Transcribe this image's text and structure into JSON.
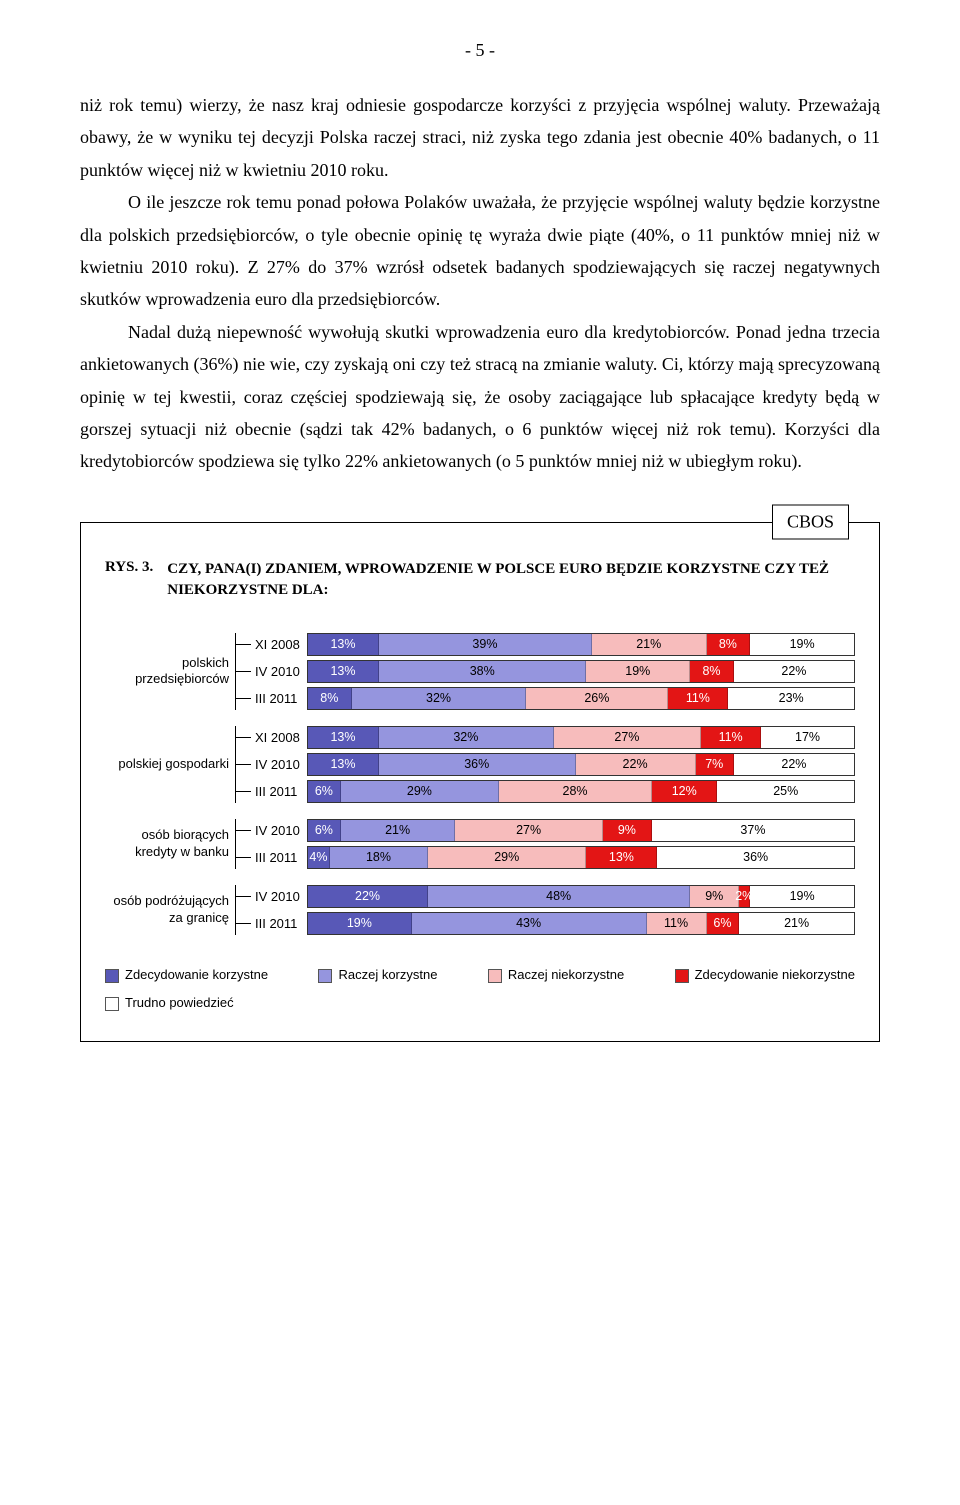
{
  "page_number": "- 5 -",
  "paragraphs": {
    "p1": "niż rok temu) wierzy, że nasz kraj odniesie gospodarcze korzyści z przyjęcia wspólnej waluty. Przeważają obawy, że w wyniku tej decyzji Polska raczej straci, niż zyska tego zdania jest obecnie 40% badanych, o 11 punktów więcej niż w kwietniu 2010 roku.",
    "p2": "O ile jeszcze rok temu ponad połowa Polaków uważała, że przyjęcie wspólnej waluty będzie korzystne dla polskich przedsiębiorców, o tyle obecnie opinię tę wyraża dwie piąte (40%, o 11 punktów mniej niż w kwietniu 2010 roku). Z 27% do 37% wzrósł odsetek badanych spodziewających się raczej negatywnych skutków wprowadzenia euro dla przedsiębiorców.",
    "p3": "Nadal dużą niepewność wywołują skutki wprowadzenia euro dla kredytobiorców. Ponad jedna trzecia ankietowanych (36%) nie wie, czy zyskają oni czy też stracą na zmianie waluty. Ci, którzy mają sprecyzowaną opinię w tej kwestii, coraz częściej spodziewają się, że osoby zaciągające lub spłacające kredyty będą w gorszej sytuacji niż obecnie (sądzi tak 42% badanych, o 6 punktów więcej niż rok temu). Korzyści dla kredytobiorców spodziewa się tylko 22% ankietowanych (o 5 punktów mniej niż w ubiegłym roku)."
  },
  "chart": {
    "badge": "CBOS",
    "rys_label": "RYS. 3.",
    "question": "CZY, PANA(I) ZDANIEM, WPROWADZENIE W POLSCE EURO BĘDZIE KORZYSTNE CZY TEŻ NIEKORZYSTNE DLA:",
    "colors": {
      "zk": "#5858b7",
      "rk": "#9595de",
      "rn": "#f7bcbc",
      "zn": "#e31515",
      "tp": "#ffffff",
      "zk_text": "#ffffff",
      "rk_text": "#000000",
      "rn_text": "#000000",
      "zn_text": "#ffffff",
      "tp_text": "#000000"
    },
    "legend": {
      "zk": "Zdecydowanie korzystne",
      "rk": "Raczej korzystne",
      "rn": "Raczej niekorzystne",
      "zn": "Zdecydowanie niekorzystne",
      "tp": "Trudno powiedzieć"
    },
    "groups": [
      {
        "label": "polskich przedsiębiorców",
        "rows": [
          {
            "wave": "XI 2008",
            "v": [
              13,
              39,
              21,
              8,
              19
            ],
            "l": [
              "13%",
              "39%",
              "21%",
              "8%",
              "19%"
            ]
          },
          {
            "wave": "IV 2010",
            "v": [
              13,
              38,
              19,
              8,
              22
            ],
            "l": [
              "13%",
              "38%",
              "19%",
              "8%",
              "22%"
            ]
          },
          {
            "wave": "III 2011",
            "v": [
              8,
              32,
              26,
              11,
              23
            ],
            "l": [
              "8%",
              "32%",
              "26%",
              "11%",
              "23%"
            ]
          }
        ]
      },
      {
        "label": "polskiej gospodarki",
        "rows": [
          {
            "wave": "XI 2008",
            "v": [
              13,
              32,
              27,
              11,
              17
            ],
            "l": [
              "13%",
              "32%",
              "27%",
              "11%",
              "17%"
            ]
          },
          {
            "wave": "IV 2010",
            "v": [
              13,
              36,
              22,
              7,
              22
            ],
            "l": [
              "13%",
              "36%",
              "22%",
              "7%",
              "22%"
            ]
          },
          {
            "wave": "III 2011",
            "v": [
              6,
              29,
              28,
              12,
              25
            ],
            "l": [
              "6%",
              "29%",
              "28%",
              "12%",
              "25%"
            ]
          }
        ]
      },
      {
        "label": "osób biorących kredyty w banku",
        "rows": [
          {
            "wave": "IV 2010",
            "v": [
              6,
              21,
              27,
              9,
              37
            ],
            "l": [
              "6%",
              "21%",
              "27%",
              "9%",
              "37%"
            ]
          },
          {
            "wave": "III 2011",
            "v": [
              4,
              18,
              29,
              13,
              36
            ],
            "l": [
              "4%",
              "18%",
              "29%",
              "13%",
              "36%"
            ]
          }
        ]
      },
      {
        "label": "osób podróżujących za granicę",
        "rows": [
          {
            "wave": "IV 2010",
            "v": [
              22,
              48,
              9,
              2,
              19
            ],
            "l": [
              "22%",
              "48%",
              "9%",
              "2%",
              "19%"
            ]
          },
          {
            "wave": "III 2011",
            "v": [
              19,
              43,
              11,
              6,
              21
            ],
            "l": [
              "19%",
              "43%",
              "11%",
              "6%",
              "21%"
            ]
          }
        ]
      }
    ]
  }
}
